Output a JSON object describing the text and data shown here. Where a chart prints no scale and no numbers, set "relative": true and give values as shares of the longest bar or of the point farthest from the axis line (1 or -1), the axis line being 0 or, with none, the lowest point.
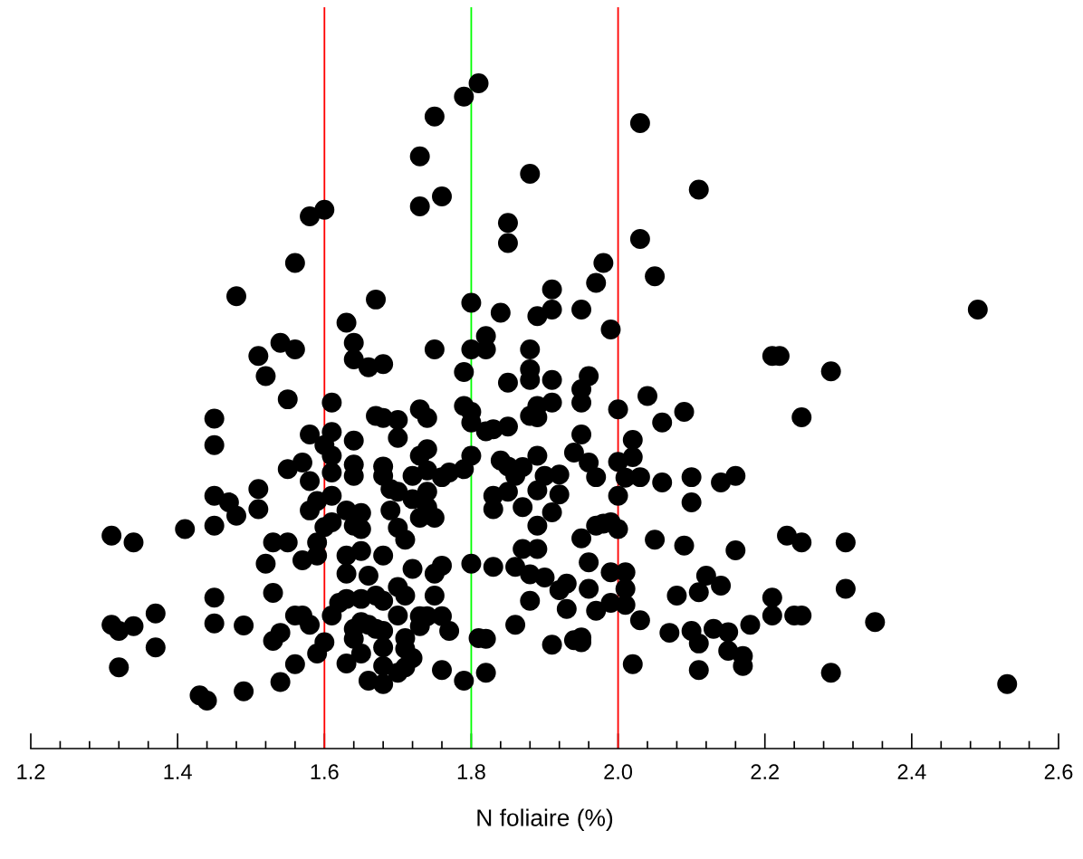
{
  "chart_data": {
    "type": "scatter",
    "xlabel": "N foliaire (%)",
    "relative": true,
    "color": "#000000",
    "marker": "circle",
    "grid": false,
    "xlim": [
      1.2,
      2.6
    ],
    "xticks": [
      {
        "value": 1.2,
        "label": "1.2"
      },
      {
        "value": 1.4,
        "label": "1.4"
      },
      {
        "value": 1.6,
        "label": "1.6"
      },
      {
        "value": 1.8,
        "label": "1.8"
      },
      {
        "value": 2.0,
        "label": "2.0"
      },
      {
        "value": 2.2,
        "label": "2.2"
      },
      {
        "value": 2.4,
        "label": "2.4"
      },
      {
        "value": 2.6,
        "label": "2.6"
      }
    ],
    "ref_lines": [
      {
        "axis": "x",
        "value": 1.6,
        "color": "#ff0000"
      },
      {
        "axis": "x",
        "value": 1.8,
        "color": "#00ff00"
      },
      {
        "axis": "x",
        "value": 2.0,
        "color": "#ff0000"
      }
    ],
    "x": [
      1.81,
      1.79,
      1.75,
      2.03,
      1.73,
      1.88,
      2.11,
      1.76,
      1.73,
      1.6,
      1.58,
      1.85,
      1.85,
      2.03,
      1.56,
      1.98,
      2.05,
      1.48,
      1.91,
      1.97,
      1.67,
      1.8,
      2.49,
      1.91,
      1.95,
      1.89,
      1.84,
      1.63,
      1.99,
      1.82,
      1.54,
      1.64,
      1.51,
      1.56,
      1.75,
      1.8,
      1.82,
      1.88,
      2.21,
      2.22,
      1.64,
      1.68,
      1.66,
      1.88,
      1.52,
      1.79,
      1.96,
      2.29,
      1.85,
      1.91,
      1.88,
      1.95,
      1.55,
      1.61,
      1.79,
      2.04,
      1.95,
      1.91,
      1.89,
      2.0,
      1.8,
      1.73,
      1.45,
      1.67,
      1.68,
      1.7,
      1.74,
      1.8,
      1.88,
      1.89,
      2.09,
      2.06,
      2.25,
      1.82,
      1.83,
      1.85,
      1.58,
      1.61,
      1.7,
      1.95,
      1.45,
      1.6,
      1.64,
      1.8,
      1.73,
      1.74,
      1.61,
      2.02,
      1.89,
      1.94,
      1.57,
      1.55,
      1.64,
      1.68,
      1.84,
      1.85,
      1.87,
      2.0,
      2.02,
      1.96,
      1.61,
      1.64,
      1.68,
      1.72,
      1.74,
      1.76,
      1.77,
      1.79,
      1.86,
      1.9,
      1.92,
      1.97,
      2.01,
      2.03,
      2.1,
      2.16,
      2.14,
      2.06,
      1.58,
      1.51,
      1.45,
      1.47,
      1.59,
      1.61,
      1.69,
      1.7,
      1.72,
      1.74,
      1.83,
      1.85,
      1.89,
      1.92,
      2.0,
      2.1,
      1.48,
      1.51,
      1.58,
      1.63,
      1.65,
      1.69,
      1.74,
      1.83,
      1.87,
      1.91,
      1.61,
      1.6,
      1.65,
      1.7,
      1.73,
      1.75,
      1.64,
      1.89,
      1.97,
      1.99,
      2.0,
      1.98,
      1.45,
      1.41,
      1.31,
      1.34,
      1.53,
      1.55,
      1.59,
      1.71,
      1.95,
      2.05,
      2.09,
      2.23,
      2.25,
      2.31,
      1.59,
      1.63,
      1.65,
      1.68,
      1.87,
      1.89,
      2.16,
      1.57,
      1.52,
      1.76,
      1.75,
      1.72,
      1.8,
      1.83,
      1.86,
      1.96,
      1.99,
      2.01,
      1.63,
      1.66,
      1.88,
      1.9,
      1.93,
      2.12,
      2.14,
      1.92,
      1.96,
      2.01,
      1.53,
      1.45,
      1.7,
      1.71,
      1.67,
      1.68,
      1.63,
      1.62,
      1.65,
      1.75,
      1.88,
      2.08,
      2.11,
      2.21,
      1.99,
      2.01,
      1.97,
      1.93,
      1.57,
      1.56,
      1.37,
      1.31,
      1.32,
      1.34,
      1.45,
      1.49,
      1.58,
      1.61,
      1.65,
      1.66,
      1.67,
      1.7,
      1.73,
      1.74,
      1.76,
      1.73,
      1.77,
      1.71,
      1.68,
      1.64,
      1.86,
      2.03,
      2.18,
      2.21,
      2.24,
      2.25,
      2.35,
      2.31,
      2.07,
      2.1,
      2.13,
      2.15,
      2.11,
      1.54,
      1.53,
      1.6,
      1.59,
      1.64,
      1.65,
      1.68,
      1.71,
      1.72,
      1.81,
      1.82,
      1.91,
      1.94,
      1.95,
      1.95,
      1.37,
      2.15,
      2.17,
      1.32,
      1.56,
      1.63,
      1.68,
      1.71,
      1.7,
      1.76,
      1.82,
      2.02,
      2.11,
      2.17,
      2.29,
      1.54,
      1.66,
      1.68,
      1.79,
      1.49,
      1.43,
      1.44,
      2.53
    ],
    "values": [
      1.0,
      0.98,
      0.95,
      0.94,
      0.89,
      0.864,
      0.84,
      0.83,
      0.815,
      0.81,
      0.8,
      0.79,
      0.76,
      0.766,
      0.73,
      0.73,
      0.71,
      0.68,
      0.69,
      0.7,
      0.675,
      0.67,
      0.66,
      0.66,
      0.66,
      0.65,
      0.655,
      0.64,
      0.63,
      0.62,
      0.61,
      0.61,
      0.59,
      0.6,
      0.6,
      0.6,
      0.6,
      0.6,
      0.59,
      0.59,
      0.585,
      0.578,
      0.573,
      0.57,
      0.56,
      0.566,
      0.56,
      0.567,
      0.55,
      0.554,
      0.554,
      0.54,
      0.525,
      0.52,
      0.515,
      0.53,
      0.52,
      0.52,
      0.515,
      0.51,
      0.506,
      0.51,
      0.496,
      0.5,
      0.497,
      0.494,
      0.497,
      0.49,
      0.5,
      0.498,
      0.506,
      0.49,
      0.498,
      0.477,
      0.48,
      0.484,
      0.472,
      0.476,
      0.467,
      0.472,
      0.456,
      0.456,
      0.463,
      0.44,
      0.44,
      0.45,
      0.44,
      0.464,
      0.44,
      0.445,
      0.43,
      0.42,
      0.427,
      0.424,
      0.433,
      0.424,
      0.423,
      0.431,
      0.438,
      0.43,
      0.415,
      0.41,
      0.41,
      0.41,
      0.418,
      0.408,
      0.415,
      0.42,
      0.41,
      0.41,
      0.412,
      0.408,
      0.407,
      0.408,
      0.408,
      0.41,
      0.4,
      0.4,
      0.402,
      0.39,
      0.38,
      0.37,
      0.372,
      0.38,
      0.39,
      0.386,
      0.375,
      0.386,
      0.38,
      0.386,
      0.388,
      0.382,
      0.38,
      0.37,
      0.35,
      0.36,
      0.358,
      0.358,
      0.354,
      0.358,
      0.363,
      0.36,
      0.363,
      0.355,
      0.34,
      0.333,
      0.33,
      0.332,
      0.347,
      0.347,
      0.335,
      0.335,
      0.335,
      0.34,
      0.33,
      0.338,
      0.335,
      0.33,
      0.32,
      0.31,
      0.31,
      0.31,
      0.31,
      0.314,
      0.316,
      0.314,
      0.305,
      0.32,
      0.31,
      0.31,
      0.29,
      0.29,
      0.297,
      0.29,
      0.3,
      0.3,
      0.298,
      0.283,
      0.278,
      0.275,
      0.263,
      0.27,
      0.278,
      0.273,
      0.273,
      0.28,
      0.265,
      0.265,
      0.263,
      0.26,
      0.262,
      0.257,
      0.248,
      0.26,
      0.245,
      0.238,
      0.24,
      0.24,
      0.234,
      0.227,
      0.243,
      0.23,
      0.23,
      0.222,
      0.225,
      0.219,
      0.225,
      0.23,
      0.222,
      0.23,
      0.235,
      0.227,
      0.219,
      0.216,
      0.207,
      0.21,
      0.2,
      0.2,
      0.203,
      0.186,
      0.177,
      0.184,
      0.188,
      0.185,
      0.186,
      0.2,
      0.19,
      0.186,
      0.18,
      0.2,
      0.199,
      0.199,
      0.199,
      0.184,
      0.177,
      0.166,
      0.177,
      0.18,
      0.186,
      0.193,
      0.186,
      0.2,
      0.2,
      0.2,
      0.19,
      0.24,
      0.174,
      0.177,
      0.18,
      0.175,
      0.158,
      0.174,
      0.162,
      0.16,
      0.143,
      0.165,
      0.143,
      0.152,
      0.15,
      0.136,
      0.166,
      0.165,
      0.156,
      0.163,
      0.167,
      0.16,
      0.152,
      0.147,
      0.139,
      0.122,
      0.127,
      0.128,
      0.124,
      0.122,
      0.114,
      0.118,
      0.114,
      0.127,
      0.118,
      0.124,
      0.114,
      0.1,
      0.102,
      0.097,
      0.102,
      0.086,
      0.08,
      0.072,
      0.097
    ]
  }
}
